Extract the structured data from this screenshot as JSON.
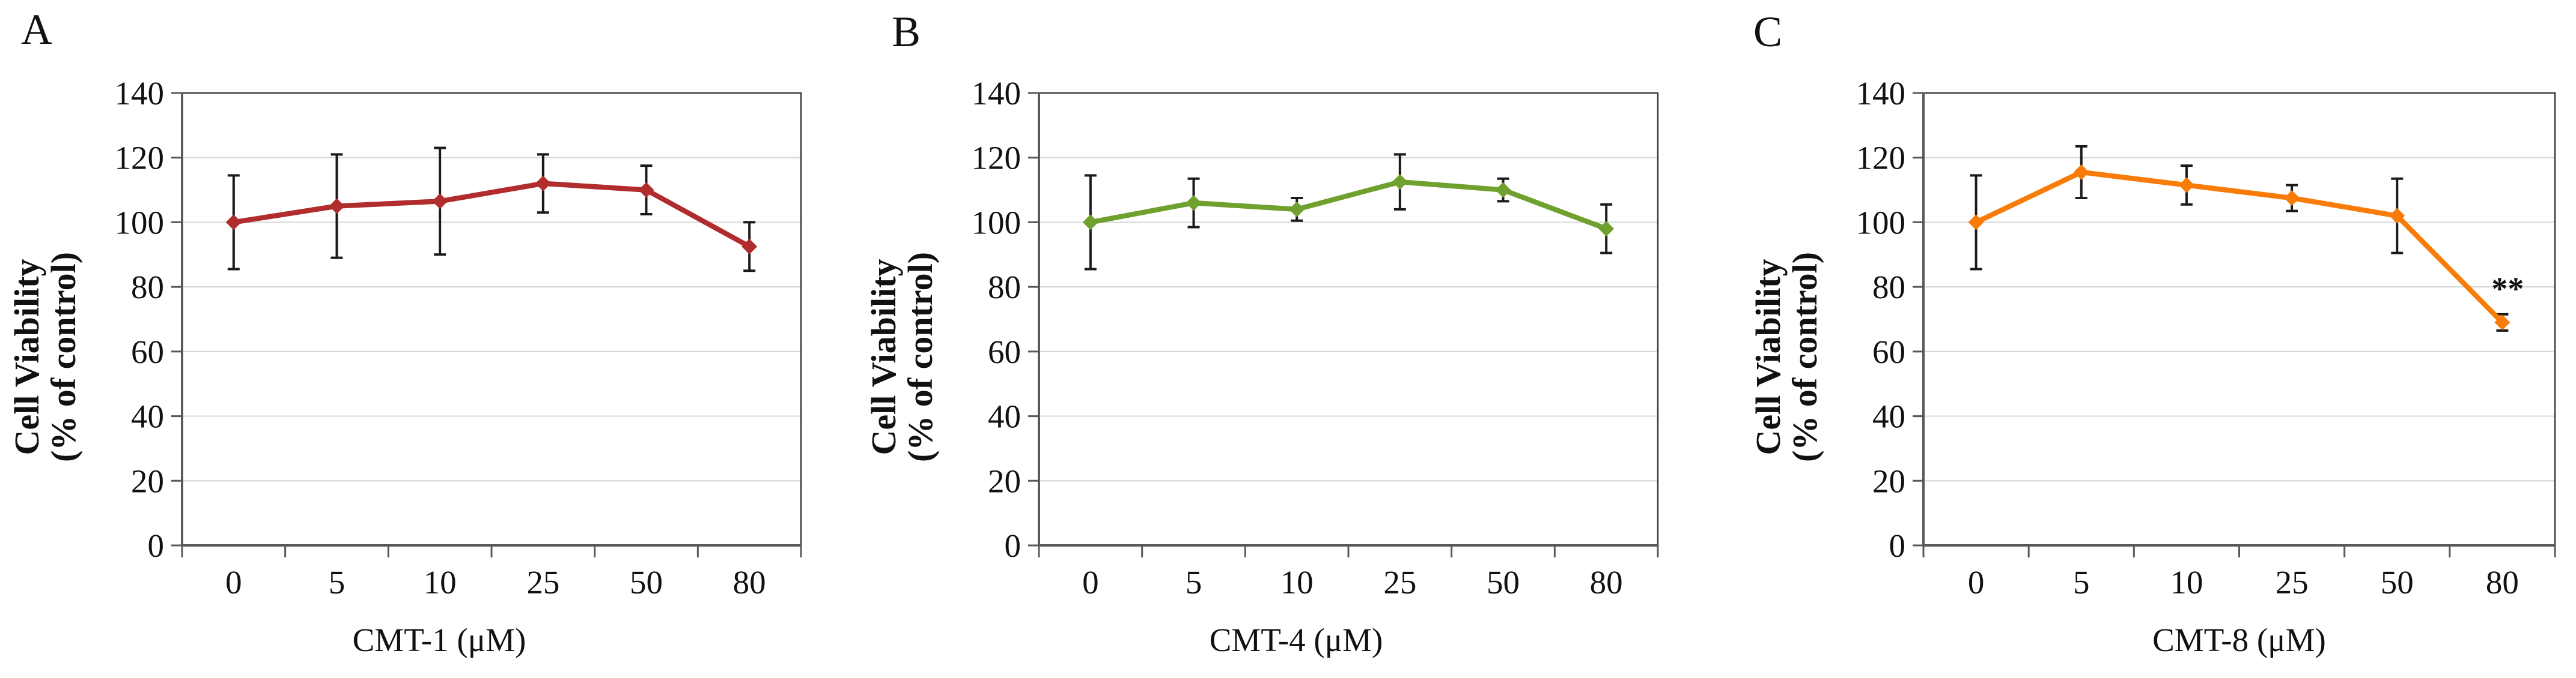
{
  "figure": {
    "background": "#ffffff",
    "error_bar_color": "#1a1a1a",
    "grid_color": "#d9d9d9",
    "axis_color": "#595959",
    "border_color": "#3a3a3a",
    "text_color": "#111111"
  },
  "chart_data": [
    {
      "type": "line",
      "panel_label": "A",
      "categories": [
        "0",
        "5",
        "10",
        "25",
        "50",
        "80"
      ],
      "values": [
        100,
        105,
        106.5,
        112,
        110,
        92.5
      ],
      "errors": [
        14.5,
        16,
        16.5,
        9,
        7.5,
        7.5
      ],
      "line_color": "#b12c2c",
      "marker": "diamond",
      "xlabel": "CMT-1 (μM)",
      "ylabel_lines": [
        "Cell Viability",
        "(% of control)"
      ],
      "ylim": [
        0,
        140
      ],
      "ytick_step": 20,
      "yticks": [
        "0",
        "20",
        "40",
        "60",
        "80",
        "100",
        "120",
        "140"
      ],
      "grid": true,
      "legend": "none",
      "annotations": []
    },
    {
      "type": "line",
      "panel_label": "B",
      "categories": [
        "0",
        "5",
        "10",
        "25",
        "50",
        "80"
      ],
      "values": [
        100,
        106,
        104,
        112.5,
        110,
        98
      ],
      "errors": [
        14.5,
        7.5,
        3.5,
        8.5,
        3.5,
        7.5
      ],
      "line_color": "#70a12f",
      "marker": "diamond",
      "xlabel": "CMT-4 (μM)",
      "ylabel_lines": [
        "Cell Viability",
        "(% of control)"
      ],
      "ylim": [
        0,
        140
      ],
      "ytick_step": 20,
      "yticks": [
        "0",
        "20",
        "40",
        "60",
        "80",
        "100",
        "120",
        "140"
      ],
      "grid": true,
      "legend": "none",
      "annotations": []
    },
    {
      "type": "line",
      "panel_label": "C",
      "categories": [
        "0",
        "5",
        "10",
        "25",
        "50",
        "80"
      ],
      "values": [
        100,
        115.5,
        111.5,
        107.5,
        102,
        69
      ],
      "errors": [
        14.5,
        8,
        6,
        4,
        11.5,
        2.5
      ],
      "line_color": "#f97c09",
      "marker": "diamond",
      "xlabel": "CMT-8 (μM)",
      "ylabel_lines": [
        "Cell Viability",
        "(% of control)"
      ],
      "ylim": [
        0,
        140
      ],
      "ytick_step": 20,
      "yticks": [
        "0",
        "20",
        "40",
        "60",
        "80",
        "100",
        "120",
        "140"
      ],
      "grid": true,
      "legend": "none",
      "annotations": [
        {
          "text": "**",
          "category_index": 5,
          "dx": 9,
          "dy": -38
        }
      ]
    }
  ]
}
